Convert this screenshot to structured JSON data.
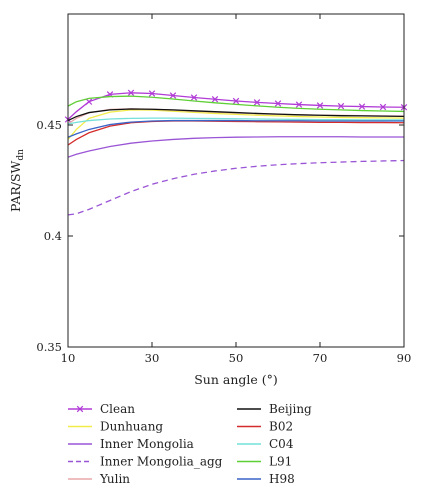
{
  "chart_data": {
    "type": "line",
    "xlabel": "Sun angle (°)",
    "ylabel_main": "PAR/SW",
    "ylabel_sub": "dn",
    "xlim": [
      10,
      90
    ],
    "ylim": [
      0.35,
      0.5
    ],
    "xticks": [
      10,
      30,
      50,
      70,
      90
    ],
    "xtick_labels": [
      "10",
      "30",
      "50",
      "70",
      "90"
    ],
    "yticks": [
      0.35,
      0.4,
      0.45
    ],
    "ytick_labels": [
      "0.35",
      "0.4",
      "0.45"
    ],
    "grid": false,
    "x": [
      10,
      12,
      15,
      20,
      25,
      30,
      35,
      40,
      45,
      50,
      55,
      60,
      65,
      70,
      75,
      80,
      85,
      90
    ],
    "series": [
      {
        "name": "Clean",
        "color": "#b03bd6",
        "dash": "solid",
        "marker": "x",
        "values": [
          0.4525,
          0.456,
          0.4605,
          0.4638,
          0.4645,
          0.4642,
          0.4633,
          0.4624,
          0.4616,
          0.4608,
          0.4602,
          0.4597,
          0.4592,
          0.4588,
          0.4585,
          0.4583,
          0.4581,
          0.458
        ]
      },
      {
        "name": "Dunhuang",
        "color": "#f2ec4a",
        "dash": "solid",
        "marker": "",
        "values": [
          0.4435,
          0.448,
          0.453,
          0.4558,
          0.4568,
          0.4567,
          0.4562,
          0.4557,
          0.4552,
          0.4548,
          0.4544,
          0.4541,
          0.4538,
          0.4536,
          0.4534,
          0.4533,
          0.4532,
          0.4531
        ]
      },
      {
        "name": "Inner Mongolia",
        "color": "#9a55d6",
        "dash": "solid",
        "marker": "",
        "values": [
          0.4355,
          0.4368,
          0.4383,
          0.4403,
          0.4418,
          0.4428,
          0.4435,
          0.444,
          0.4443,
          0.4445,
          0.4446,
          0.4447,
          0.4447,
          0.4447,
          0.4447,
          0.4446,
          0.4446,
          0.4446
        ]
      },
      {
        "name": "Inner Mongolia_agg",
        "color": "#9a55d6",
        "dash": "dashed",
        "marker": "",
        "values": [
          0.4095,
          0.41,
          0.412,
          0.416,
          0.42,
          0.4233,
          0.4258,
          0.4278,
          0.4293,
          0.4305,
          0.4314,
          0.4321,
          0.4326,
          0.433,
          0.4333,
          0.4336,
          0.4338,
          0.434
        ]
      },
      {
        "name": "Yulin",
        "color": "#e8a8a8",
        "dash": "solid",
        "marker": "",
        "values": [
          0.4505,
          0.453,
          0.4555,
          0.457,
          0.4573,
          0.4571,
          0.4567,
          0.4562,
          0.4558,
          0.4554,
          0.4551,
          0.4548,
          0.4546,
          0.4544,
          0.4543,
          0.4542,
          0.4541,
          0.454
        ]
      },
      {
        "name": "Beijing",
        "color": "#111111",
        "dash": "solid",
        "marker": "",
        "values": [
          0.452,
          0.4538,
          0.4556,
          0.4568,
          0.4572,
          0.4571,
          0.4568,
          0.4564,
          0.456,
          0.4556,
          0.4552,
          0.4549,
          0.4546,
          0.4544,
          0.4542,
          0.4541,
          0.454,
          0.4539
        ]
      },
      {
        "name": "B02",
        "color": "#d42c2c",
        "dash": "solid",
        "marker": "",
        "values": [
          0.441,
          0.4435,
          0.4465,
          0.4495,
          0.451,
          0.4516,
          0.4518,
          0.4518,
          0.4517,
          0.4516,
          0.4515,
          0.4514,
          0.4513,
          0.4512,
          0.4512,
          0.4511,
          0.4511,
          0.451
        ]
      },
      {
        "name": "C04",
        "color": "#74e0d8",
        "dash": "solid",
        "marker": "",
        "values": [
          0.4505,
          0.4512,
          0.452,
          0.4527,
          0.453,
          0.4531,
          0.4531,
          0.453,
          0.4529,
          0.4528,
          0.4527,
          0.4526,
          0.4525,
          0.4524,
          0.4524,
          0.4523,
          0.4523,
          0.4523
        ]
      },
      {
        "name": "L91",
        "color": "#5fcf36",
        "dash": "solid",
        "marker": "",
        "values": [
          0.4585,
          0.4605,
          0.462,
          0.4628,
          0.463,
          0.4625,
          0.4617,
          0.4608,
          0.46,
          0.4593,
          0.4586,
          0.458,
          0.4575,
          0.4571,
          0.4568,
          0.4565,
          0.4563,
          0.4561
        ]
      },
      {
        "name": "H98",
        "color": "#3a64c8",
        "dash": "solid",
        "marker": "",
        "values": [
          0.4445,
          0.446,
          0.448,
          0.4502,
          0.4513,
          0.4518,
          0.452,
          0.452,
          0.452,
          0.452,
          0.4519,
          0.4519,
          0.4519,
          0.4518,
          0.4518,
          0.4518,
          0.4518,
          0.4518
        ]
      }
    ],
    "legend": {
      "placement": "bottom",
      "left_column": [
        "Clean",
        "Dunhuang",
        "Inner Mongolia",
        "Inner Mongolia_agg",
        "Yulin"
      ],
      "right_column": [
        "Beijing",
        "B02",
        "C04",
        "L91",
        "H98"
      ]
    }
  }
}
